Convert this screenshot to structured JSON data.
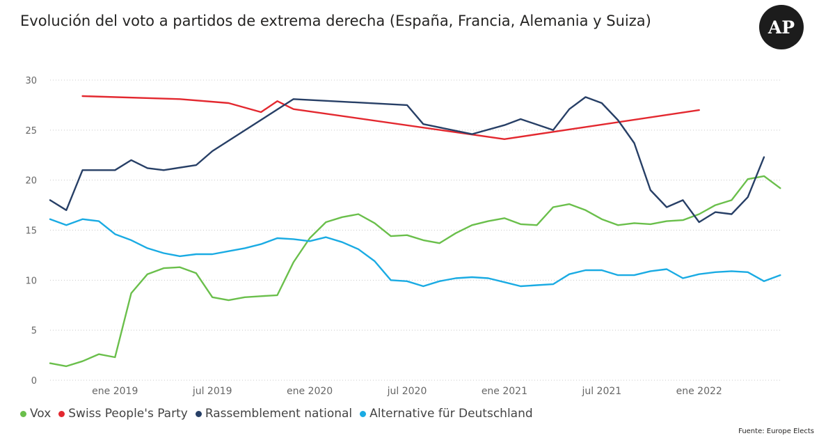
{
  "header": {
    "title": "Evolución del voto a partidos de extrema derecha (España, Francia, Alemania y Suiza)",
    "logo_text": "AP"
  },
  "footer": {
    "source": "Fuente: Europe Elects"
  },
  "chart_data": {
    "type": "line",
    "title": "Evolución del voto a partidos de extrema derecha (España, Francia, Alemania y Suiza)",
    "xlabel": "",
    "ylabel": "",
    "x_range": [
      "2018-09",
      "2022-05"
    ],
    "ylim": [
      0,
      30
    ],
    "yticks": [
      "0",
      "5",
      "10",
      "15",
      "20",
      "25",
      "30"
    ],
    "xticks": [
      {
        "label": "ene 2019",
        "date": "2019-01"
      },
      {
        "label": "jul 2019",
        "date": "2019-07"
      },
      {
        "label": "ene 2020",
        "date": "2020-01"
      },
      {
        "label": "jul 2020",
        "date": "2020-07"
      },
      {
        "label": "ene 2021",
        "date": "2021-01"
      },
      {
        "label": "jul 2021",
        "date": "2021-07"
      },
      {
        "label": "ene 2022",
        "date": "2022-01"
      }
    ],
    "grid": true,
    "legend_position": "bottom-left",
    "series": [
      {
        "name": "Vox",
        "color": "#6abf4b",
        "points": [
          [
            "2018-09",
            1.7
          ],
          [
            "2018-10",
            1.4
          ],
          [
            "2018-11",
            1.9
          ],
          [
            "2018-12",
            2.6
          ],
          [
            "2019-01",
            2.3
          ],
          [
            "2019-02",
            8.7
          ],
          [
            "2019-03",
            10.6
          ],
          [
            "2019-04",
            11.2
          ],
          [
            "2019-05",
            11.3
          ],
          [
            "2019-06",
            10.7
          ],
          [
            "2019-07",
            8.3
          ],
          [
            "2019-08",
            8.0
          ],
          [
            "2019-09",
            8.3
          ],
          [
            "2019-10",
            8.4
          ],
          [
            "2019-11",
            8.5
          ],
          [
            "2019-12",
            11.8
          ],
          [
            "2020-01",
            14.2
          ],
          [
            "2020-02",
            15.8
          ],
          [
            "2020-03",
            16.3
          ],
          [
            "2020-04",
            16.6
          ],
          [
            "2020-05",
            15.7
          ],
          [
            "2020-06",
            14.4
          ],
          [
            "2020-07",
            14.5
          ],
          [
            "2020-08",
            14.0
          ],
          [
            "2020-09",
            13.7
          ],
          [
            "2020-10",
            14.7
          ],
          [
            "2020-11",
            15.5
          ],
          [
            "2020-12",
            15.9
          ],
          [
            "2021-01",
            16.2
          ],
          [
            "2021-02",
            15.6
          ],
          [
            "2021-03",
            15.5
          ],
          [
            "2021-04",
            17.3
          ],
          [
            "2021-05",
            17.6
          ],
          [
            "2021-06",
            17.0
          ],
          [
            "2021-07",
            16.1
          ],
          [
            "2021-08",
            15.5
          ],
          [
            "2021-09",
            15.7
          ],
          [
            "2021-10",
            15.6
          ],
          [
            "2021-11",
            15.9
          ],
          [
            "2021-12",
            16.0
          ],
          [
            "2022-01",
            16.6
          ],
          [
            "2022-02",
            17.5
          ],
          [
            "2022-03",
            18.0
          ],
          [
            "2022-04",
            20.1
          ],
          [
            "2022-05",
            20.4
          ],
          [
            "2022-06",
            19.2
          ]
        ]
      },
      {
        "name": "Swiss People's Party",
        "color": "#e3282f",
        "points": [
          [
            "2018-11",
            28.4
          ],
          [
            "2019-05",
            28.1
          ],
          [
            "2019-08",
            27.7
          ],
          [
            "2019-10",
            26.8
          ],
          [
            "2019-11",
            27.9
          ],
          [
            "2019-12",
            27.1
          ],
          [
            "2021-01",
            24.1
          ],
          [
            "2022-01",
            27.0
          ]
        ]
      },
      {
        "name": "Rassemblement national",
        "color": "#273f66",
        "points": [
          [
            "2018-09",
            18.0
          ],
          [
            "2018-10",
            17.0
          ],
          [
            "2018-11",
            21.0
          ],
          [
            "2018-12",
            21.0
          ],
          [
            "2019-01",
            21.0
          ],
          [
            "2019-02",
            22.0
          ],
          [
            "2019-03",
            21.2
          ],
          [
            "2019-04",
            21.0
          ],
          [
            "2019-06",
            21.5
          ],
          [
            "2019-07",
            22.9
          ],
          [
            "2019-12",
            28.1
          ],
          [
            "2020-07",
            27.5
          ],
          [
            "2020-08",
            25.6
          ],
          [
            "2020-11",
            24.6
          ],
          [
            "2021-01",
            25.5
          ],
          [
            "2021-02",
            26.1
          ],
          [
            "2021-04",
            25.0
          ],
          [
            "2021-05",
            27.1
          ],
          [
            "2021-06",
            28.3
          ],
          [
            "2021-07",
            27.7
          ],
          [
            "2021-08",
            26.0
          ],
          [
            "2021-09",
            23.7
          ],
          [
            "2021-10",
            19.0
          ],
          [
            "2021-11",
            17.3
          ],
          [
            "2021-12",
            18.0
          ],
          [
            "2022-01",
            15.8
          ],
          [
            "2022-02",
            16.8
          ],
          [
            "2022-03",
            16.6
          ],
          [
            "2022-04",
            18.3
          ],
          [
            "2022-05",
            22.3
          ]
        ]
      },
      {
        "name": "Alternative für Deutschland",
        "color": "#1aabe3",
        "points": [
          [
            "2018-09",
            16.1
          ],
          [
            "2018-10",
            15.5
          ],
          [
            "2018-11",
            16.1
          ],
          [
            "2018-12",
            15.9
          ],
          [
            "2019-01",
            14.6
          ],
          [
            "2019-02",
            14.0
          ],
          [
            "2019-03",
            13.2
          ],
          [
            "2019-04",
            12.7
          ],
          [
            "2019-05",
            12.4
          ],
          [
            "2019-06",
            12.6
          ],
          [
            "2019-07",
            12.6
          ],
          [
            "2019-08",
            12.9
          ],
          [
            "2019-09",
            13.2
          ],
          [
            "2019-10",
            13.6
          ],
          [
            "2019-11",
            14.2
          ],
          [
            "2019-12",
            14.1
          ],
          [
            "2020-01",
            13.9
          ],
          [
            "2020-02",
            14.3
          ],
          [
            "2020-03",
            13.8
          ],
          [
            "2020-04",
            13.1
          ],
          [
            "2020-05",
            11.9
          ],
          [
            "2020-06",
            10.0
          ],
          [
            "2020-07",
            9.9
          ],
          [
            "2020-08",
            9.4
          ],
          [
            "2020-09",
            9.9
          ],
          [
            "2020-10",
            10.2
          ],
          [
            "2020-11",
            10.3
          ],
          [
            "2020-12",
            10.2
          ],
          [
            "2021-01",
            9.8
          ],
          [
            "2021-02",
            9.4
          ],
          [
            "2021-03",
            9.5
          ],
          [
            "2021-04",
            9.6
          ],
          [
            "2021-05",
            10.6
          ],
          [
            "2021-06",
            11.0
          ],
          [
            "2021-07",
            11.0
          ],
          [
            "2021-08",
            10.5
          ],
          [
            "2021-09",
            10.5
          ],
          [
            "2021-10",
            10.9
          ],
          [
            "2021-11",
            11.1
          ],
          [
            "2021-12",
            10.2
          ],
          [
            "2022-01",
            10.6
          ],
          [
            "2022-02",
            10.8
          ],
          [
            "2022-03",
            10.9
          ],
          [
            "2022-04",
            10.8
          ],
          [
            "2022-05",
            9.9
          ],
          [
            "2022-06",
            10.5
          ]
        ]
      }
    ]
  }
}
